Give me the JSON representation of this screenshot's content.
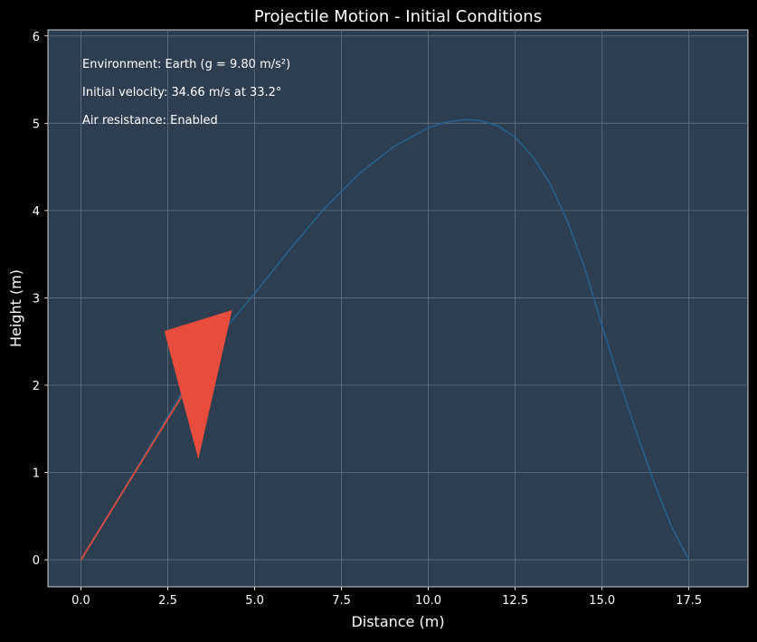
{
  "chart_data": {
    "type": "line",
    "title": "Projectile Motion - Initial Conditions",
    "xlabel": "Distance (m)",
    "ylabel": "Height (m)",
    "xlim": [
      -0.95,
      19.2
    ],
    "ylim": [
      -0.31,
      6.07
    ],
    "xticks": [
      "0.0",
      "2.5",
      "5.0",
      "7.5",
      "10.0",
      "12.5",
      "15.0",
      "17.5"
    ],
    "xtick_values": [
      0,
      2.5,
      5,
      7.5,
      10,
      12.5,
      15,
      17.5
    ],
    "yticks": [
      "0",
      "1",
      "2",
      "3",
      "4",
      "5",
      "6"
    ],
    "ytick_values": [
      0,
      1,
      2,
      3,
      4,
      5,
      6
    ],
    "grid": true,
    "annotations": [
      "Environment: Earth (g = 9.80 m/s²)",
      "Initial velocity: 34.66 m/s at 33.2°",
      "Air resistance: Enabled"
    ],
    "series": [
      {
        "x": [
          0,
          1,
          2,
          3,
          4,
          5,
          6,
          7,
          8,
          9,
          10,
          10.5,
          11,
          11.2,
          11.5,
          12,
          12.5,
          13,
          13.5,
          14,
          14.5,
          15,
          15.5,
          16,
          16.5,
          17,
          17.5
        ],
        "y": [
          0,
          0.65,
          1.31,
          1.98,
          2.58,
          3.05,
          3.55,
          4.02,
          4.42,
          4.73,
          4.95,
          5.01,
          5.04,
          5.04,
          5.03,
          4.97,
          4.84,
          4.62,
          4.31,
          3.88,
          3.34,
          2.68,
          2.04,
          1.45,
          0.88,
          0.38,
          0
        ]
      }
    ],
    "velocity_vector": {
      "from": [
        0,
        0
      ],
      "to": [
        3.1,
        2.0
      ],
      "arrowhead": [
        [
          2.4,
          2.62
        ],
        [
          4.35,
          2.86
        ],
        [
          3.38,
          1.15
        ]
      ]
    },
    "colors": {
      "figure_background": "#000000",
      "plot_background": "#2c3e50",
      "trajectory": "#2a5e86",
      "vector": "#e74c3c",
      "text": "#ffffff",
      "grid": "#60707f"
    }
  }
}
